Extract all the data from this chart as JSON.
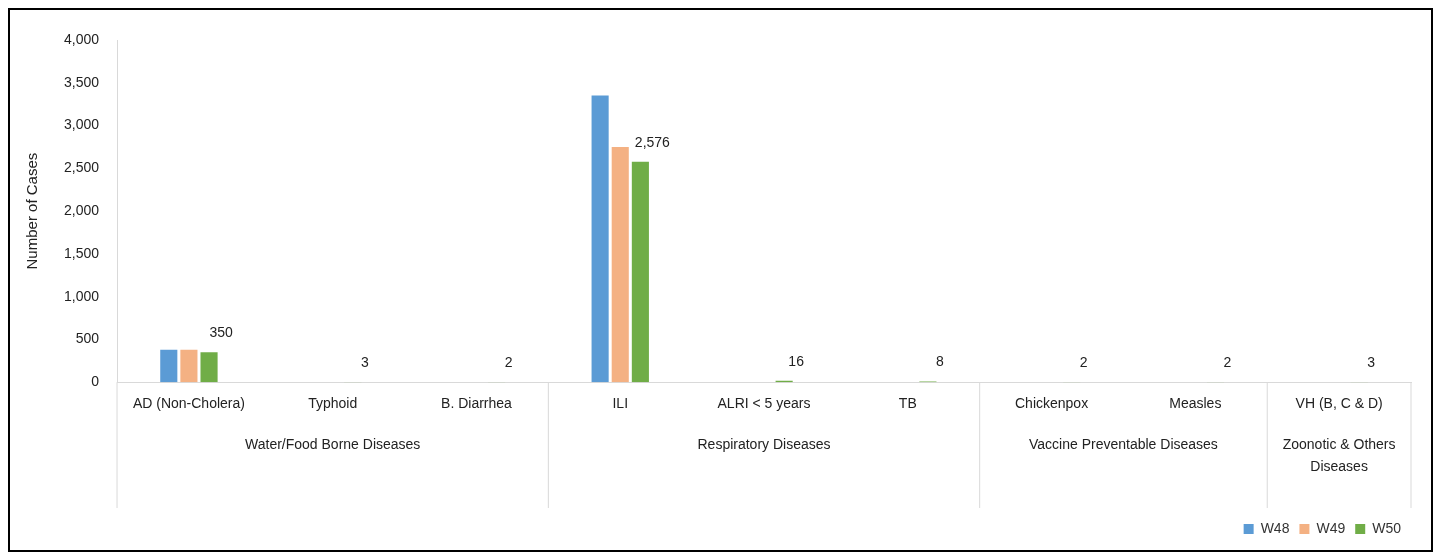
{
  "chart_data": {
    "type": "bar",
    "ylabel": "Number of Cases",
    "categories": [
      "AD (Non-Cholera)",
      "Typhoid",
      "B. Diarrhea",
      "ILI",
      "ALRI < 5 years",
      "TB",
      "Chickenpox",
      "Measles",
      "VH (B, C & D)"
    ],
    "series": [
      {
        "name": "W48",
        "color": "#5b9bd5",
        "values": [
          380,
          null,
          null,
          3350,
          null,
          null,
          null,
          null,
          null
        ]
      },
      {
        "name": "W49",
        "color": "#f4b183",
        "values": [
          380,
          null,
          null,
          2750,
          null,
          null,
          null,
          null,
          null
        ]
      },
      {
        "name": "W50",
        "color": "#70ad47",
        "values": [
          350,
          3,
          2,
          2576,
          16,
          8,
          2,
          2,
          3
        ],
        "value_labels": [
          "350",
          "3",
          "2",
          "2,576",
          "16",
          "8",
          "2",
          "2",
          "3"
        ]
      }
    ],
    "annotations": [
      "Water/Food Borne Diseases",
      "Respiratory Diseases",
      "Vaccine Preventable Diseases",
      "Zoonotic & Others Diseases"
    ],
    "ylim": [
      0,
      4000
    ],
    "yticks": [
      {
        "value": 0,
        "label": "0"
      },
      {
        "value": 500,
        "label": "500"
      },
      {
        "value": 1000,
        "label": "1,000"
      },
      {
        "value": 1500,
        "label": "1,500"
      },
      {
        "value": 2000,
        "label": "2,000"
      },
      {
        "value": 2500,
        "label": "2,500"
      },
      {
        "value": 3000,
        "label": "3,000"
      },
      {
        "value": 3500,
        "label": "3,500"
      },
      {
        "value": 4000,
        "label": "4,000"
      }
    ],
    "grid": false,
    "legend": "bottom right"
  }
}
